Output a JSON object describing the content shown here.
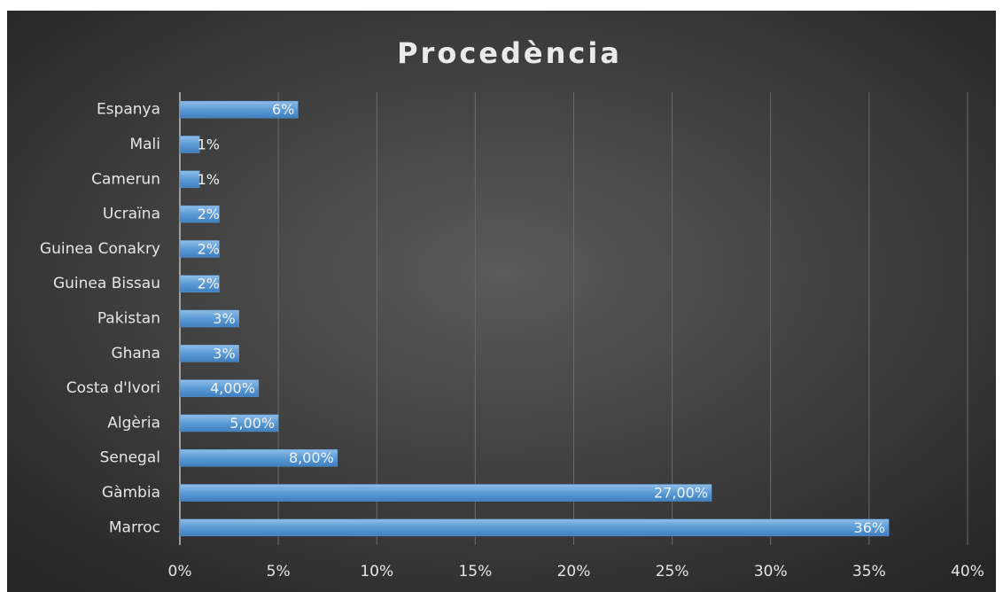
{
  "chart_data": {
    "type": "barh",
    "title": "Procedència",
    "categories": [
      "Espanya",
      "Mali",
      "Camerun",
      "Ucraïna",
      "Guinea Conakry",
      "Guinea Bissau",
      "Pakistan",
      "Ghana",
      "Costa d'Ivori",
      "Algèria",
      "Senegal",
      "Gàmbia",
      "Marroc"
    ],
    "values": [
      6,
      1,
      1,
      2,
      2,
      2,
      3,
      3,
      4,
      5,
      8,
      27,
      36
    ],
    "value_labels": [
      "6%",
      "1%",
      "1%",
      "2%",
      "2%",
      "2%",
      "3%",
      "3%",
      "4,00%",
      "5,00%",
      "8,00%",
      "27,00%",
      "36%"
    ],
    "color": "#5b9bd5",
    "xlim": [
      0,
      40
    ],
    "xticks": [
      {
        "value": 0,
        "label": "0%"
      },
      {
        "value": 5,
        "label": "5%"
      },
      {
        "value": 10,
        "label": "10%"
      },
      {
        "value": 15,
        "label": "15%"
      },
      {
        "value": 20,
        "label": "20%"
      },
      {
        "value": 25,
        "label": "25%"
      },
      {
        "value": 30,
        "label": "30%"
      },
      {
        "value": 35,
        "label": "35%"
      },
      {
        "value": 40,
        "label": "40%"
      }
    ],
    "grid": true
  }
}
